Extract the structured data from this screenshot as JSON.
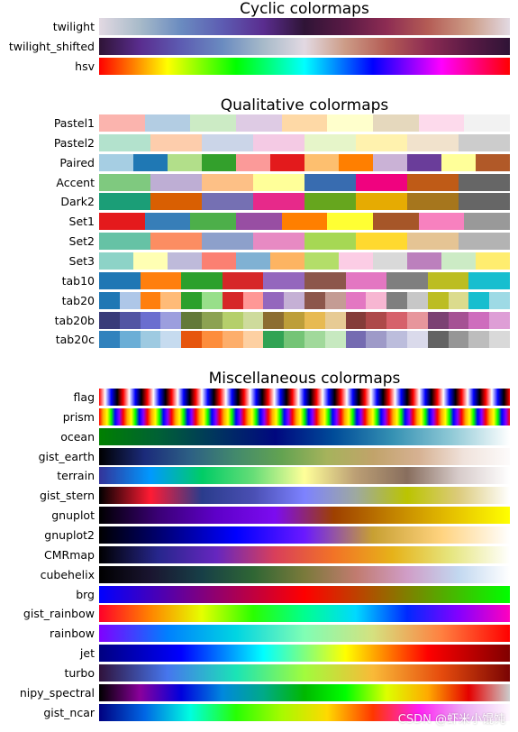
{
  "chart_data": [
    {
      "type": "heatmap",
      "title": "Cyclic colormaps",
      "series": [
        {
          "name": "twilight",
          "stops": [
            "#e2d9e2",
            "#a7bac9",
            "#6a8bc0",
            "#5d5cb2",
            "#5a2d8f",
            "#2f1436",
            "#5a1a45",
            "#8d2c53",
            "#b45c55",
            "#cc9b86",
            "#e2d9e2"
          ]
        },
        {
          "name": "twilight_shifted",
          "stops": [
            "#2f1436",
            "#5a2d8f",
            "#5d5cb2",
            "#6a8bc0",
            "#a7bac9",
            "#e2d9e2",
            "#cc9b86",
            "#b45c55",
            "#8d2c53",
            "#5a1a45",
            "#2f1436"
          ]
        },
        {
          "name": "hsv",
          "stops": [
            "#ff0000",
            "#ffff00",
            "#00ff00",
            "#00ffff",
            "#0000ff",
            "#ff00ff",
            "#ff0000"
          ]
        }
      ]
    },
    {
      "type": "heatmap",
      "title": "Qualitative colormaps",
      "series": [
        {
          "name": "Pastel1",
          "colors": [
            "#fbb4ae",
            "#b3cde3",
            "#ccebc5",
            "#decbe4",
            "#fed9a6",
            "#ffffcc",
            "#e5d8bd",
            "#fddaec",
            "#f2f2f2"
          ]
        },
        {
          "name": "Pastel2",
          "colors": [
            "#b3e2cd",
            "#fdcdac",
            "#cbd5e8",
            "#f4cae4",
            "#e6f5c9",
            "#fff2ae",
            "#f1e2cc",
            "#cccccc"
          ]
        },
        {
          "name": "Paired",
          "colors": [
            "#a6cee3",
            "#1f78b4",
            "#b2df8a",
            "#33a02c",
            "#fb9a99",
            "#e31a1c",
            "#fdbf6f",
            "#ff7f00",
            "#cab2d6",
            "#6a3d9a",
            "#ffff99",
            "#b15928"
          ]
        },
        {
          "name": "Accent",
          "colors": [
            "#7fc97f",
            "#beaed4",
            "#fdc086",
            "#ffff99",
            "#386cb0",
            "#f0027f",
            "#bf5b17",
            "#666666"
          ]
        },
        {
          "name": "Dark2",
          "colors": [
            "#1b9e77",
            "#d95f02",
            "#7570b3",
            "#e7298a",
            "#66a61e",
            "#e6ab02",
            "#a6761d",
            "#666666"
          ]
        },
        {
          "name": "Set1",
          "colors": [
            "#e41a1c",
            "#377eb8",
            "#4daf4a",
            "#984ea3",
            "#ff7f00",
            "#ffff33",
            "#a65628",
            "#f781bf",
            "#999999"
          ]
        },
        {
          "name": "Set2",
          "colors": [
            "#66c2a5",
            "#fc8d62",
            "#8da0cb",
            "#e78ac3",
            "#a6d854",
            "#ffd92f",
            "#e5c494",
            "#b3b3b3"
          ]
        },
        {
          "name": "Set3",
          "colors": [
            "#8dd3c7",
            "#ffffb3",
            "#bebada",
            "#fb8072",
            "#80b1d3",
            "#fdb462",
            "#b3de69",
            "#fccde5",
            "#d9d9d9",
            "#bc80bd",
            "#ccebc5",
            "#ffed6f"
          ]
        },
        {
          "name": "tab10",
          "colors": [
            "#1f77b4",
            "#ff7f0e",
            "#2ca02c",
            "#d62728",
            "#9467bd",
            "#8c564b",
            "#e377c2",
            "#7f7f7f",
            "#bcbd22",
            "#17becf"
          ]
        },
        {
          "name": "tab20",
          "colors": [
            "#1f77b4",
            "#aec7e8",
            "#ff7f0e",
            "#ffbb78",
            "#2ca02c",
            "#98df8a",
            "#d62728",
            "#ff9896",
            "#9467bd",
            "#c5b0d5",
            "#8c564b",
            "#c49c94",
            "#e377c2",
            "#f7b6d2",
            "#7f7f7f",
            "#c7c7c7",
            "#bcbd22",
            "#dbdb8d",
            "#17becf",
            "#9edae5"
          ]
        },
        {
          "name": "tab20b",
          "colors": [
            "#393b79",
            "#5254a3",
            "#6b6ecf",
            "#9c9ede",
            "#637939",
            "#8ca252",
            "#b5cf6b",
            "#cedb9c",
            "#8c6d31",
            "#bd9e39",
            "#e7ba52",
            "#e7cb94",
            "#843c39",
            "#ad494a",
            "#d6616b",
            "#e7969c",
            "#7b4173",
            "#a55194",
            "#ce6dbd",
            "#de9ed6"
          ]
        },
        {
          "name": "tab20c",
          "colors": [
            "#3182bd",
            "#6baed6",
            "#9ecae1",
            "#c6dbef",
            "#e6550d",
            "#fd8d3c",
            "#fdae6b",
            "#fdd0a2",
            "#31a354",
            "#74c476",
            "#a1d99b",
            "#c7e9c0",
            "#756bb1",
            "#9e9ac8",
            "#bcbddc",
            "#dadaeb",
            "#636363",
            "#969696",
            "#bdbdbd",
            "#d9d9d9"
          ]
        }
      ]
    },
    {
      "type": "heatmap",
      "title": "Miscellaneous colormaps",
      "series": [
        {
          "name": "flag",
          "pattern": "flag",
          "repeats": 17
        },
        {
          "name": "prism",
          "pattern": "prism",
          "repeats": 17
        },
        {
          "name": "ocean",
          "stops": [
            "#008000",
            "#006135",
            "#00345f",
            "#00087f",
            "#004c99",
            "#3591b3",
            "#8fc9d6",
            "#ffffff"
          ]
        },
        {
          "name": "gist_earth",
          "stops": [
            "#000000",
            "#1b2b7b",
            "#2d6084",
            "#438a6c",
            "#63a351",
            "#a6b35c",
            "#c1a36a",
            "#d6b192",
            "#f0e3dc",
            "#fdfbfb"
          ]
        },
        {
          "name": "terrain",
          "stops": [
            "#333399",
            "#0099ff",
            "#00cc66",
            "#66dd77",
            "#ffff99",
            "#bb9e74",
            "#886e5e",
            "#d7cbca",
            "#ffffff"
          ]
        },
        {
          "name": "gist_stern",
          "stops": [
            "#000000",
            "#ff1b33",
            "#2a3c8c",
            "#4a4fb3",
            "#7d82ff",
            "#9ea9a0",
            "#bbc400",
            "#dccb7c",
            "#ffffff"
          ]
        },
        {
          "name": "gnuplot",
          "stops": [
            "#000000",
            "#3a0075",
            "#5e00c9",
            "#7c0cf0",
            "#9e4000",
            "#c28200",
            "#e5c000",
            "#ffff00"
          ]
        },
        {
          "name": "gnuplot2",
          "stops": [
            "#000000",
            "#00007f",
            "#0000ff",
            "#6a19ff",
            "#c8a032",
            "#ffd37f",
            "#ffffff"
          ]
        },
        {
          "name": "CMRmap",
          "stops": [
            "#000000",
            "#26268c",
            "#6626bf",
            "#d93f5a",
            "#f27326",
            "#e6b219",
            "#e6e680",
            "#ffffff"
          ]
        },
        {
          "name": "cubehelix",
          "stops": [
            "#000000",
            "#1a1530",
            "#173f47",
            "#2f6634",
            "#7a7a3b",
            "#c17b6f",
            "#d09dc7",
            "#c2d8f0",
            "#ffffff"
          ]
        },
        {
          "name": "brg",
          "stops": [
            "#0000ff",
            "#ff0000",
            "#00ff00"
          ]
        },
        {
          "name": "gist_rainbow",
          "stops": [
            "#ff0029",
            "#ff8400",
            "#e5ff00",
            "#2aff00",
            "#00ff8f",
            "#00d9ff",
            "#0029ff",
            "#8400ff",
            "#ff00bf"
          ]
        },
        {
          "name": "rainbow",
          "stops": [
            "#8000ff",
            "#0080fe",
            "#00d5e2",
            "#80feb4",
            "#d5e17f",
            "#ff8040",
            "#ff0000"
          ]
        },
        {
          "name": "jet",
          "stops": [
            "#000080",
            "#0000ff",
            "#00ffff",
            "#ffff00",
            "#ff0000",
            "#800000"
          ]
        },
        {
          "name": "turbo",
          "stops": [
            "#30123b",
            "#4676ee",
            "#1ae4b6",
            "#a1fc3d",
            "#f9ba38",
            "#e64b0d",
            "#7a0403"
          ]
        },
        {
          "name": "nipy_spectral",
          "stops": [
            "#000000",
            "#8a009c",
            "#0000dd",
            "#0088dd",
            "#00aa88",
            "#00b800",
            "#00ff00",
            "#ddff00",
            "#ffaa00",
            "#e40000",
            "#cccccc"
          ]
        },
        {
          "name": "gist_ncar",
          "stops": [
            "#000080",
            "#0066e5",
            "#00fee0",
            "#27ff04",
            "#a7fa00",
            "#ffd900",
            "#ff3600",
            "#ff1ff2",
            "#ebadf4",
            "#fef8fe"
          ]
        }
      ]
    }
  ],
  "watermark": "CSDN @虾米小馄饨"
}
